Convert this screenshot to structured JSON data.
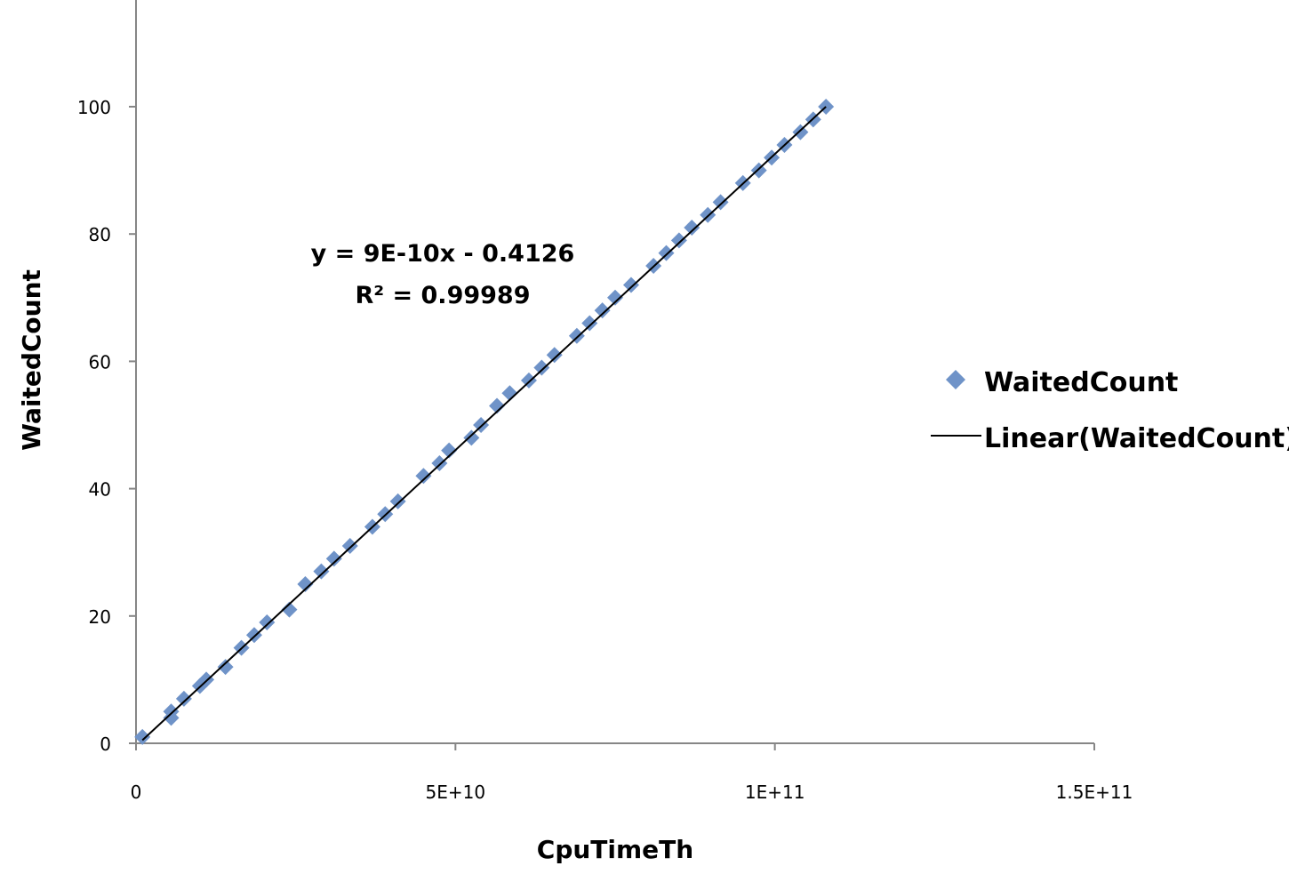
{
  "chart_data": {
    "type": "scatter",
    "xlabel": "CpuTimeTh",
    "ylabel": "WaitedCount",
    "xlim": [
      0,
      150000000000
    ],
    "ylim": [
      0,
      100
    ],
    "x_ticks": [
      {
        "value": 0,
        "label": "0"
      },
      {
        "value": 50000000000,
        "label": "5E+10"
      },
      {
        "value": 100000000000,
        "label": "1E+11"
      },
      {
        "value": 150000000000,
        "label": "1.5E+11"
      }
    ],
    "y_ticks": [
      {
        "value": 0,
        "label": "0"
      },
      {
        "value": 20,
        "label": "20"
      },
      {
        "value": 40,
        "label": "40"
      },
      {
        "value": 60,
        "label": "60"
      },
      {
        "value": 80,
        "label": "80"
      },
      {
        "value": 100,
        "label": "100"
      }
    ],
    "grid": false,
    "legend_position": "right",
    "series": [
      {
        "name": "WaitedCount",
        "marker": "diamond",
        "color": "#6f93c8",
        "points": [
          [
            1000000000,
            1
          ],
          [
            5500000000,
            4
          ],
          [
            5500000000,
            5
          ],
          [
            7500000000,
            7
          ],
          [
            10000000000,
            9
          ],
          [
            11000000000,
            10
          ],
          [
            14000000000,
            12
          ],
          [
            16500000000,
            15
          ],
          [
            18500000000,
            17
          ],
          [
            20500000000,
            19
          ],
          [
            24000000000,
            21
          ],
          [
            26500000000,
            25
          ],
          [
            29000000000,
            27
          ],
          [
            31000000000,
            29
          ],
          [
            33500000000,
            31
          ],
          [
            37000000000,
            34
          ],
          [
            39000000000,
            36
          ],
          [
            41000000000,
            38
          ],
          [
            45000000000,
            42
          ],
          [
            47500000000,
            44
          ],
          [
            49000000000,
            46
          ],
          [
            52500000000,
            48
          ],
          [
            54000000000,
            50
          ],
          [
            56500000000,
            53
          ],
          [
            58500000000,
            55
          ],
          [
            61500000000,
            57
          ],
          [
            63500000000,
            59
          ],
          [
            65500000000,
            61
          ],
          [
            69000000000,
            64
          ],
          [
            71000000000,
            66
          ],
          [
            73000000000,
            68
          ],
          [
            75000000000,
            70
          ],
          [
            77500000000,
            72
          ],
          [
            81000000000,
            75
          ],
          [
            83000000000,
            77
          ],
          [
            85000000000,
            79
          ],
          [
            87000000000,
            81
          ],
          [
            89500000000,
            83
          ],
          [
            91500000000,
            85
          ],
          [
            95000000000,
            88
          ],
          [
            97500000000,
            90
          ],
          [
            99500000000,
            92
          ],
          [
            101500000000,
            94
          ],
          [
            104000000000,
            96
          ],
          [
            106000000000,
            98
          ],
          [
            108000000000,
            100
          ]
        ]
      },
      {
        "name": "Linear(WaitedCount)",
        "type": "trendline",
        "color": "#000000",
        "points": [
          [
            1000000000,
            0.4874
          ],
          [
            108000000000,
            100
          ]
        ]
      }
    ],
    "annotations": {
      "equation": "y = 9E-10x - 0.4126",
      "r_squared": "R² = 0.99989"
    }
  }
}
